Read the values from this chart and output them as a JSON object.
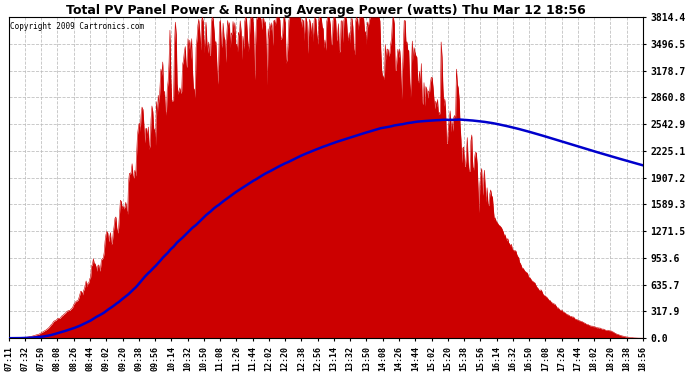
{
  "title": "Total PV Panel Power & Running Average Power (watts) Thu Mar 12 18:56",
  "copyright": "Copyright 2009 Cartronics.com",
  "background_color": "#ffffff",
  "plot_bg_color": "#ffffff",
  "yticks": [
    0.0,
    317.9,
    635.7,
    953.6,
    1271.5,
    1589.3,
    1907.2,
    2225.1,
    2542.9,
    2860.8,
    3178.7,
    3496.5,
    3814.4
  ],
  "ymax": 3814.4,
  "fill_color": "#cc0000",
  "avg_color": "#0000cc",
  "grid_color": "#aaaaaa",
  "xtick_labels": [
    "07:11",
    "07:32",
    "07:50",
    "08:08",
    "08:26",
    "08:44",
    "09:02",
    "09:20",
    "09:38",
    "09:56",
    "10:14",
    "10:32",
    "10:50",
    "11:08",
    "11:26",
    "11:44",
    "12:02",
    "12:20",
    "12:38",
    "12:56",
    "13:14",
    "13:32",
    "13:50",
    "14:08",
    "14:26",
    "14:44",
    "15:02",
    "15:20",
    "15:38",
    "15:56",
    "16:14",
    "16:32",
    "16:50",
    "17:08",
    "17:26",
    "17:44",
    "18:02",
    "18:20",
    "18:38",
    "18:56"
  ]
}
